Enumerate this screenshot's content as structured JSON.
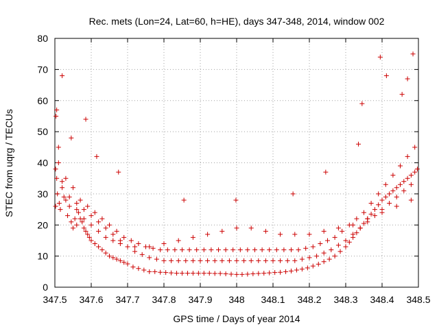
{
  "chart_data": {
    "type": "scatter",
    "title": "Rec. mets (Lon=24, Lat=60, h=HE), days 347-348, 2014, window 002",
    "xlabel": "GPS time / Days of year 2014",
    "ylabel": "STEC from uqrg / TECUs",
    "xlim": [
      347.5,
      348.5
    ],
    "ylim": [
      0,
      80
    ],
    "x_ticks": [
      347.5,
      347.6,
      347.7,
      347.8,
      347.9,
      348.0,
      348.1,
      348.2,
      348.3,
      348.4,
      348.5
    ],
    "x_tick_labels": [
      "347.5",
      "347.6",
      "347.7",
      "347.8",
      "347.9",
      "348",
      "348.1",
      "348.2",
      "348.3",
      "348.4",
      "348.5"
    ],
    "y_ticks": [
      0,
      10,
      20,
      30,
      40,
      50,
      60,
      70,
      80
    ],
    "y_tick_labels": [
      "0",
      "10",
      "20",
      "30",
      "40",
      "50",
      "60",
      "70",
      "80"
    ],
    "grid": true,
    "marker": "plus",
    "color": "#cc0000",
    "series": [
      {
        "x": [
          347.502,
          347.502,
          347.503,
          347.505,
          347.507,
          347.51,
          347.512,
          347.515,
          347.52,
          347.525,
          347.53,
          347.535,
          347.54,
          347.545,
          347.55,
          347.555,
          347.56,
          347.565,
          347.57,
          347.575,
          347.58,
          347.585,
          347.59,
          347.595,
          347.6,
          347.61,
          347.62,
          347.63,
          347.64,
          347.65,
          347.66,
          347.67,
          347.68,
          347.69,
          347.7,
          347.715,
          347.73,
          347.745,
          347.76,
          347.775,
          347.79,
          347.805,
          347.82,
          347.835,
          347.85,
          347.865,
          347.88,
          347.895,
          347.91,
          347.925,
          347.94,
          347.955,
          347.97,
          347.985,
          348.0,
          348.015,
          348.03,
          348.045,
          348.06,
          348.075,
          348.09,
          348.105,
          348.12,
          348.135,
          348.15,
          348.165,
          348.18,
          348.195,
          348.21,
          348.225,
          348.24,
          348.255,
          348.27,
          348.285,
          348.3,
          348.31,
          348.32,
          348.33,
          348.34,
          348.35,
          348.36,
          348.37,
          348.38,
          348.39,
          348.4,
          348.41,
          348.42,
          348.43,
          348.44,
          348.45,
          348.46,
          348.47,
          348.48,
          348.49,
          348.497,
          347.505,
          347.52,
          347.545,
          347.585,
          347.615,
          347.675,
          347.855,
          347.998,
          348.155,
          348.245,
          348.335,
          348.345,
          348.395,
          348.412,
          348.455,
          348.47,
          348.485
        ],
        "y": [
          26,
          38,
          55,
          35,
          30,
          45,
          27,
          25,
          34,
          29,
          28,
          23,
          26,
          21,
          19,
          22,
          20,
          24,
          22,
          21,
          19,
          18,
          17,
          16,
          15,
          14,
          13,
          12,
          11,
          10,
          9.5,
          9,
          8.5,
          8,
          7.5,
          6.5,
          6,
          5.5,
          5,
          5,
          4.8,
          4.7,
          4.6,
          4.5,
          4.5,
          4.5,
          4.5,
          4.5,
          4.5,
          4.5,
          4.4,
          4.4,
          4.3,
          4.2,
          4.1,
          4.1,
          4.2,
          4.3,
          4.4,
          4.5,
          4.6,
          4.7,
          4.8,
          5,
          5.2,
          5.5,
          5.8,
          6.2,
          6.8,
          7.4,
          8.2,
          9,
          10,
          11.5,
          13,
          14.5,
          16,
          17.5,
          19,
          20.5,
          22,
          23.5,
          25,
          26.5,
          28,
          29,
          30,
          31,
          32,
          33,
          34,
          35,
          36,
          37,
          38,
          57,
          68,
          48,
          54,
          42,
          37,
          28,
          28,
          30,
          37,
          46,
          59,
          74,
          68,
          62,
          67,
          75
        ]
      },
      {
        "x": [
          347.51,
          347.53,
          347.55,
          347.57,
          347.59,
          347.61,
          347.63,
          347.65,
          347.67,
          347.69,
          347.71,
          347.73,
          347.75,
          347.77,
          347.79,
          347.81,
          347.83,
          347.85,
          347.87,
          347.89,
          347.91,
          347.93,
          347.95,
          347.97,
          347.99,
          348.01,
          348.03,
          348.05,
          348.07,
          348.09,
          348.11,
          348.13,
          348.15,
          348.17,
          348.19,
          348.21,
          348.23,
          348.25,
          348.27,
          348.29,
          348.31,
          348.33,
          348.35,
          348.37,
          348.39,
          348.41,
          348.43,
          348.45,
          348.47,
          348.49
        ],
        "y": [
          40,
          35,
          32,
          28,
          26,
          24,
          22,
          20,
          18,
          16,
          15,
          14,
          13,
          12.5,
          12,
          12,
          12,
          12,
          12,
          12,
          12,
          12,
          12,
          12,
          12,
          12,
          12,
          12,
          12,
          12,
          12,
          12,
          12,
          12,
          12.5,
          13,
          14,
          15,
          16,
          18,
          20,
          22,
          24,
          27,
          30,
          33,
          36,
          39,
          42,
          45
        ]
      },
      {
        "x": [
          347.52,
          347.54,
          347.56,
          347.58,
          347.6,
          347.62,
          347.64,
          347.66,
          347.68,
          347.7,
          347.72,
          347.74,
          347.76,
          347.78,
          347.8,
          347.82,
          347.84,
          347.86,
          347.88,
          347.9,
          347.92,
          347.94,
          347.96,
          347.98,
          348.0,
          348.02,
          348.04,
          348.06,
          348.08,
          348.1,
          348.12,
          348.14,
          348.16,
          348.18,
          348.2,
          348.22,
          348.24,
          348.26,
          348.28,
          348.3,
          348.32,
          348.34,
          348.36,
          348.38,
          348.4,
          348.42,
          348.44,
          348.46,
          348.48
        ],
        "y": [
          32,
          29,
          27,
          25,
          23,
          21,
          19,
          17,
          15,
          13,
          11.5,
          10.5,
          9.5,
          9,
          8.5,
          8.5,
          8.5,
          8.5,
          8.5,
          8.5,
          8.5,
          8.5,
          8.5,
          8.5,
          8.5,
          8.5,
          8.5,
          8.5,
          8.5,
          8.5,
          8.5,
          8.5,
          8.5,
          9,
          9.5,
          10,
          11,
          12,
          13.5,
          15,
          17,
          19,
          21,
          23,
          25,
          27,
          29,
          31,
          33
        ]
      },
      {
        "x": [
          347.56,
          347.58,
          347.6,
          347.62,
          347.64,
          347.66,
          347.68,
          347.72,
          347.76,
          347.8,
          347.84,
          347.88,
          347.92,
          347.96,
          348.0,
          348.04,
          348.08,
          348.12,
          348.16,
          348.2,
          348.24,
          348.28,
          348.32,
          348.36,
          348.4,
          348.44,
          348.48
        ],
        "y": [
          25,
          22,
          20,
          18,
          16,
          15,
          14,
          13,
          13,
          14,
          15,
          16,
          17,
          18,
          19,
          19,
          18,
          17,
          17,
          17,
          18,
          19,
          20,
          22,
          24,
          26,
          28
        ]
      }
    ]
  }
}
